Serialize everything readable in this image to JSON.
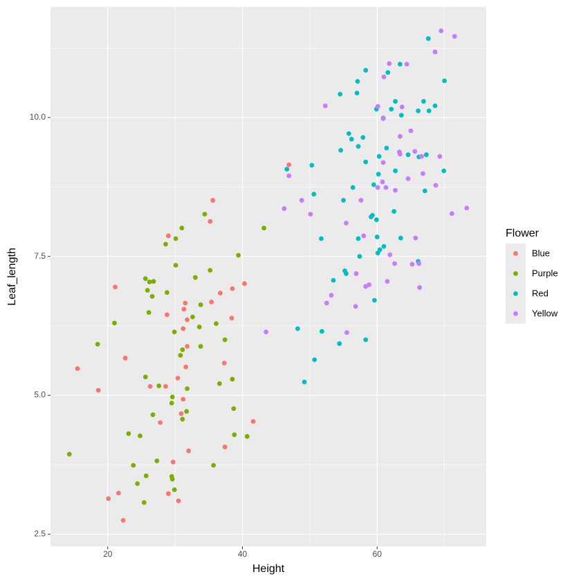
{
  "chart_data": {
    "type": "scatter",
    "x_label": "Height",
    "y_label": "Leaf_length",
    "legend_title": "Flower",
    "legend_position": "right",
    "grid": true,
    "xlim": [
      11.5,
      76.2
    ],
    "ylim": [
      2.28,
      11.99
    ],
    "xticks": [
      20,
      40,
      60
    ],
    "yticks": [
      {
        "value": 2.5,
        "label": "2.5"
      },
      {
        "value": 5,
        "label": "5.0"
      },
      {
        "value": 7.5,
        "label": "7.5"
      },
      {
        "value": 10,
        "label": "10.0"
      }
    ],
    "series": [
      {
        "name": "Blue",
        "color": "#F8766D",
        "x": [
          46.9,
          35.6,
          35.2,
          29.0,
          21.1,
          22.6,
          15.5,
          18.6,
          36.7,
          40.3,
          38.5,
          31.5,
          28.8,
          31.3,
          38.4,
          31.2,
          31.8,
          37.3,
          31.6,
          26.3,
          28.6,
          30.4,
          31.2,
          27.8,
          30.9,
          41.6,
          32.0,
          37.4,
          29.7,
          20.1,
          21.6,
          22.3,
          29.0,
          30.5,
          35.4,
          31.8
        ],
        "y": [
          9.15,
          8.51,
          8.13,
          7.87,
          6.95,
          5.67,
          5.48,
          5.09,
          6.84,
          7.01,
          6.92,
          6.66,
          6.45,
          6.55,
          6.39,
          6.2,
          5.88,
          5.58,
          5.51,
          5.16,
          5.16,
          5.31,
          4.93,
          4.51,
          4.67,
          4.53,
          4.0,
          4.07,
          3.8,
          3.14,
          3.24,
          2.75,
          3.23,
          3.1,
          6.68,
          6.36
        ]
      },
      {
        "name": "Purple",
        "color": "#7CAE00",
        "x": [
          34.4,
          31.0,
          30.1,
          28.6,
          43.2,
          39.4,
          30.1,
          35.2,
          33.0,
          25.6,
          25.9,
          26.8,
          26.2,
          26.6,
          28.8,
          21.0,
          32.6,
          33.8,
          26.1,
          29.9,
          36.1,
          37.4,
          18.5,
          31.1,
          30.8,
          25.6,
          27.6,
          31.8,
          29.6,
          38.5,
          29.5,
          26.7,
          31.7,
          31.1,
          38.7,
          14.3,
          23.1,
          24.8,
          38.8,
          40.7,
          27.3,
          23.8,
          29.5,
          25.7,
          24.4,
          29.6,
          29.9,
          25.4,
          35.7,
          33.6,
          36.6,
          33.8
        ],
        "y": [
          8.26,
          8.01,
          7.82,
          7.72,
          8.01,
          7.52,
          7.34,
          7.25,
          7.12,
          7.1,
          6.89,
          7.05,
          7.04,
          6.78,
          6.85,
          6.3,
          6.41,
          6.63,
          6.49,
          6.14,
          6.29,
          6.0,
          5.92,
          5.82,
          5.72,
          5.33,
          5.17,
          5.12,
          4.97,
          5.29,
          4.86,
          4.65,
          4.71,
          4.57,
          4.76,
          3.94,
          4.31,
          4.27,
          4.29,
          4.26,
          3.82,
          3.74,
          3.54,
          3.55,
          3.41,
          3.49,
          3.3,
          3.07,
          3.74,
          6.23,
          5.21,
          5.88
        ]
      },
      {
        "name": "Red",
        "color": "#00BFC4",
        "x": [
          67.6,
          58.3,
          63.4,
          61.6,
          57.1,
          57.0,
          54.5,
          70.0,
          62.7,
          66.9,
          68.6,
          59.9,
          62.1,
          63.6,
          66.1,
          67.7,
          60.9,
          55.8,
          57.9,
          56.2,
          57.2,
          54.6,
          61.4,
          64.6,
          60.3,
          58.3,
          62.7,
          66.2,
          67.3,
          50.3,
          46.6,
          60.2,
          69.9,
          56.4,
          50.6,
          55.0,
          67.1,
          59.5,
          62.5,
          59.1,
          59.9,
          51.7,
          57.2,
          60.0,
          63.5,
          61.0,
          60.4,
          60.1,
          57.4,
          66.1,
          55.2,
          55.4,
          53.5,
          59.6,
          48.2,
          51.8,
          58.3,
          54.4,
          50.7,
          49.2,
          59.3
        ],
        "y": [
          11.42,
          10.85,
          10.96,
          10.81,
          10.65,
          10.44,
          10.42,
          10.66,
          10.29,
          10.29,
          10.21,
          10.15,
          10.15,
          10.04,
          10.12,
          10.12,
          9.99,
          9.71,
          9.64,
          9.61,
          9.48,
          9.41,
          9.45,
          9.33,
          9.3,
          9.2,
          9.04,
          9.29,
          9.33,
          9.14,
          9.07,
          8.98,
          9.04,
          8.74,
          8.62,
          8.51,
          8.68,
          8.79,
          8.31,
          8.21,
          8.16,
          7.82,
          7.82,
          7.85,
          7.83,
          7.68,
          7.62,
          7.56,
          7.5,
          7.41,
          7.24,
          7.19,
          7.07,
          6.71,
          6.2,
          6.15,
          6.0,
          5.93,
          5.64,
          5.24,
          8.24
        ]
      },
      {
        "name": "Yellow",
        "color": "#C77CFF",
        "x": [
          69.5,
          71.5,
          68.6,
          61.8,
          64.4,
          61.0,
          52.3,
          60.1,
          63.7,
          60.9,
          65.0,
          63.4,
          63.3,
          65.6,
          63.4,
          66.6,
          69.3,
          60.9,
          66.8,
          64.6,
          60.8,
          62.7,
          61.3,
          68.7,
          57.6,
          48.8,
          46.2,
          50.1,
          71.1,
          73.3,
          55.4,
          58.0,
          65.7,
          61.9,
          62.6,
          66.2,
          65.2,
          56.9,
          58.8,
          58.3,
          66.3,
          61.5,
          53.2,
          52.5,
          56.8,
          55.5,
          43.5,
          46.9,
          60.1
        ],
        "y": [
          11.56,
          11.46,
          11.18,
          10.97,
          10.96,
          10.73,
          10.21,
          10.2,
          10.19,
          9.98,
          9.76,
          9.66,
          9.38,
          9.39,
          9.34,
          9.3,
          9.3,
          9.19,
          8.99,
          8.9,
          8.84,
          8.69,
          8.74,
          8.78,
          8.51,
          8.51,
          8.36,
          8.26,
          8.27,
          8.37,
          8.1,
          7.87,
          7.83,
          7.53,
          7.37,
          7.37,
          7.36,
          7.19,
          6.99,
          6.96,
          6.94,
          7.05,
          6.8,
          6.66,
          6.6,
          6.13,
          6.14,
          8.95,
          8.74
        ]
      }
    ]
  }
}
